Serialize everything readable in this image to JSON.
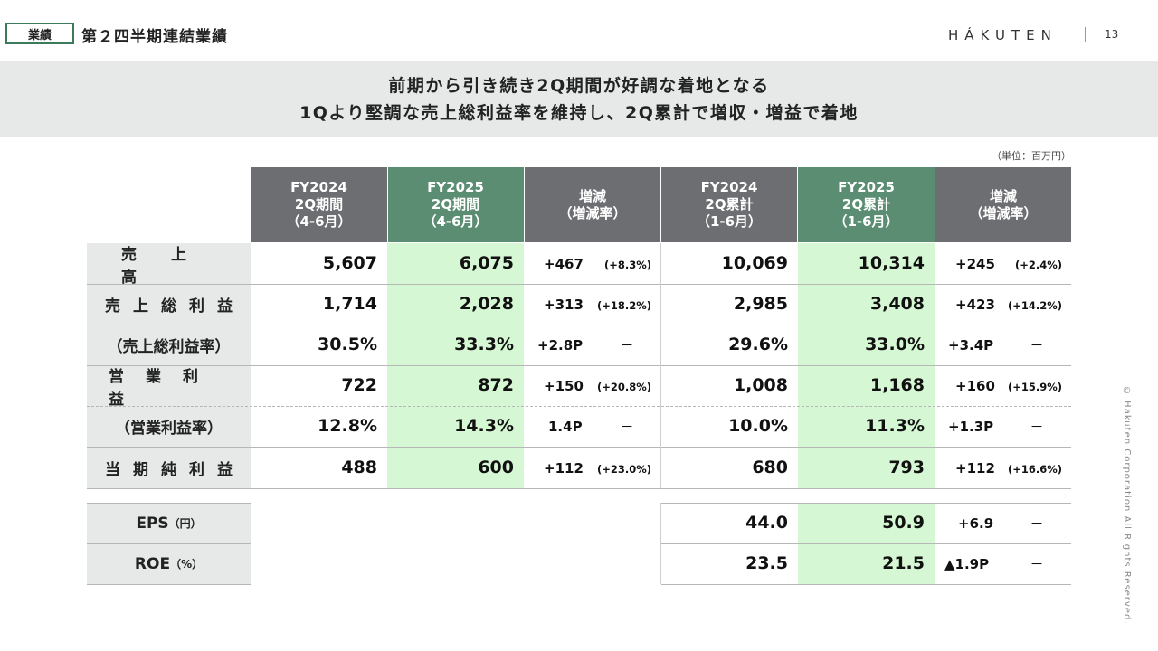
{
  "header": {
    "tag": "業績",
    "title": "第２四半期連結業績",
    "logo": "HÁKUTEN",
    "page_number": "13"
  },
  "banner": {
    "line1": "前期から引き続き2Q期間が好調な着地となる",
    "line2": "1Qより堅調な売上総利益率を維持し、2Q累計で増収・増益で着地"
  },
  "unit": "（単位：百万円）",
  "columns": [
    {
      "l1": "FY2024",
      "l2": "2Q期間",
      "l3": "（4-6月）"
    },
    {
      "l1": "FY2025",
      "l2": "2Q期間",
      "l3": "（4-6月）"
    },
    {
      "l1": "増減",
      "l2": "（増減率）",
      "l3": ""
    },
    {
      "l1": "FY2024",
      "l2": "2Q累計",
      "l3": "（1-6月）"
    },
    {
      "l1": "FY2025",
      "l2": "2Q累計",
      "l3": "（1-6月）"
    },
    {
      "l1": "増減",
      "l2": "（増減率）",
      "l3": ""
    }
  ],
  "rows": [
    {
      "label": "売上高",
      "q24": "5,607",
      "q25": "6,075",
      "qd": "+467",
      "qr": "(+8.3%)",
      "c24": "10,069",
      "c25": "10,314",
      "cd": "+245",
      "cr": "(+2.4%)"
    },
    {
      "label": "売上総利益",
      "q24": "1,714",
      "q25": "2,028",
      "qd": "+313",
      "qr": "(+18.2%)",
      "c24": "2,985",
      "c25": "3,408",
      "cd": "+423",
      "cr": "(+14.2%)"
    },
    {
      "label": "（売上総利益率）",
      "q24": "30.5%",
      "q25": "33.3%",
      "qd": "+2.8P",
      "qr": "－",
      "c24": "29.6%",
      "c25": "33.0%",
      "cd": "+3.4P",
      "cr": "－"
    },
    {
      "label": "営業利益",
      "q24": "722",
      "q25": "872",
      "qd": "+150",
      "qr": "(+20.8%)",
      "c24": "1,008",
      "c25": "1,168",
      "cd": "+160",
      "cr": "(+15.9%)"
    },
    {
      "label": "（営業利益率）",
      "q24": "12.8%",
      "q25": "14.3%",
      "qd": "1.4P",
      "qr": "－",
      "c24": "10.0%",
      "c25": "11.3%",
      "cd": "+1.3P",
      "cr": "－"
    },
    {
      "label": "当期純利益",
      "q24": "488",
      "q25": "600",
      "qd": "+112",
      "qr": "(+23.0%)",
      "c24": "680",
      "c25": "793",
      "cd": "+112",
      "cr": "(+16.6%)"
    }
  ],
  "extra_rows": [
    {
      "label": "EPS",
      "unit": "（円）",
      "c24": "44.0",
      "c25": "50.9",
      "cd": "+6.9",
      "cr": "－"
    },
    {
      "label": "ROE",
      "unit": "（%）",
      "c24": "23.5",
      "c25": "21.5",
      "cd": "▲1.9P",
      "cr": "－"
    }
  ],
  "copyright": "© Hakuten Corporation All Rights Reserved."
}
